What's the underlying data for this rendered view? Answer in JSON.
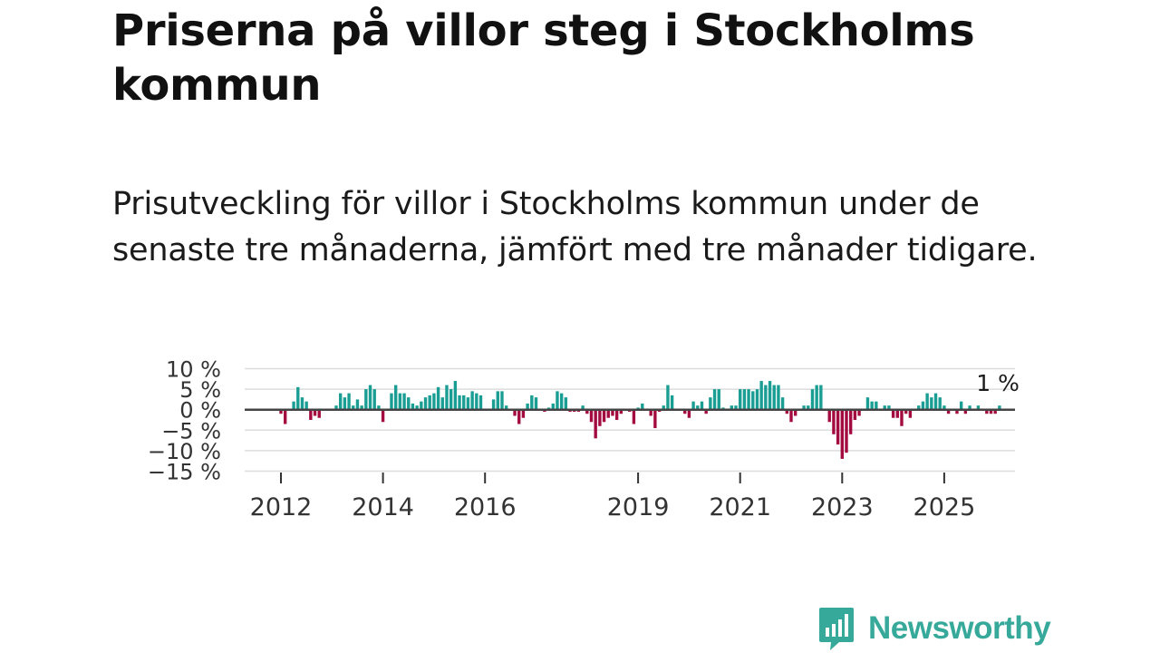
{
  "title": "Priserna på villor steg i Stockholms kommun",
  "subtitle": "Prisutveckling för villor i Stockholms kommun under de senaste tre månaderna, jämfört med tre månader tidigare.",
  "brand": {
    "name": "Newsworthy",
    "color": "#36a99a"
  },
  "colors": {
    "positive": "#1a9e94",
    "negative": "#a30a3f",
    "zero_line": "#444444",
    "grid": "#dddddd"
  },
  "chart_data": {
    "type": "bar",
    "title": "Priserna på villor steg i Stockholms kommun",
    "xlabel": "",
    "ylabel": "",
    "unit": "%",
    "ylim": [
      -15,
      10
    ],
    "y_ticks": [
      {
        "value": 10,
        "label": "10 %"
      },
      {
        "value": 5,
        "label": "5 %"
      },
      {
        "value": 0,
        "label": "0 %"
      },
      {
        "value": -5,
        "label": "−5 %"
      },
      {
        "value": -10,
        "label": "−10 %"
      },
      {
        "value": -15,
        "label": "−15 %"
      }
    ],
    "x_start": {
      "year": 2011,
      "month": 10
    },
    "x_ticks": [
      {
        "year": 2012,
        "label": "2012"
      },
      {
        "year": 2014,
        "label": "2014"
      },
      {
        "year": 2016,
        "label": "2016"
      },
      {
        "year": 2019,
        "label": "2019"
      },
      {
        "year": 2021,
        "label": "2021"
      },
      {
        "year": 2023,
        "label": "2023"
      },
      {
        "year": 2025,
        "label": "2025"
      }
    ],
    "end_label": "1 %",
    "values": [
      0,
      0,
      0,
      -1,
      -3.5,
      0,
      2,
      5.5,
      3,
      2,
      -2.5,
      -1.5,
      -2,
      0,
      0,
      0,
      1,
      4,
      3,
      4,
      1,
      2.5,
      1,
      5,
      6,
      5,
      1,
      -3,
      0,
      4,
      6,
      4,
      4,
      3,
      1.5,
      1,
      2,
      3,
      3.5,
      4,
      5.5,
      3,
      6,
      5,
      7,
      3.5,
      3.5,
      3,
      4.5,
      4,
      3.5,
      0,
      0,
      2.5,
      4.5,
      4.5,
      1,
      0,
      -1.5,
      -3.5,
      -2,
      1.5,
      3.5,
      3,
      0,
      -0.5,
      0.5,
      1.5,
      4.5,
      4,
      3,
      -0.5,
      -0.5,
      -0.5,
      1,
      -1,
      -3,
      -7,
      -4,
      -3,
      -2,
      -1.5,
      -2.5,
      -1,
      0,
      -0.5,
      -3.5,
      0.5,
      1.5,
      0,
      -1.5,
      -4.5,
      -0.5,
      1,
      6,
      3.5,
      0,
      0,
      -1,
      -2,
      2,
      1,
      2,
      -1,
      3,
      5,
      5,
      0.5,
      0,
      1,
      1,
      5,
      5,
      5,
      4.5,
      5,
      7,
      6,
      7,
      6,
      6,
      3,
      -1,
      -3,
      -1.5,
      0,
      1,
      1,
      5,
      6,
      6,
      0,
      -3,
      -6,
      -8.5,
      -12,
      -10.5,
      -6,
      -2.5,
      -1.5,
      0,
      3,
      2,
      2,
      0,
      1,
      1,
      -2,
      -2,
      -4,
      -1,
      -2,
      0,
      1,
      2,
      4,
      3,
      4,
      3,
      1,
      -1,
      0,
      -1,
      2,
      -1,
      1,
      0,
      1,
      0,
      -1,
      -1,
      -1,
      1
    ]
  }
}
